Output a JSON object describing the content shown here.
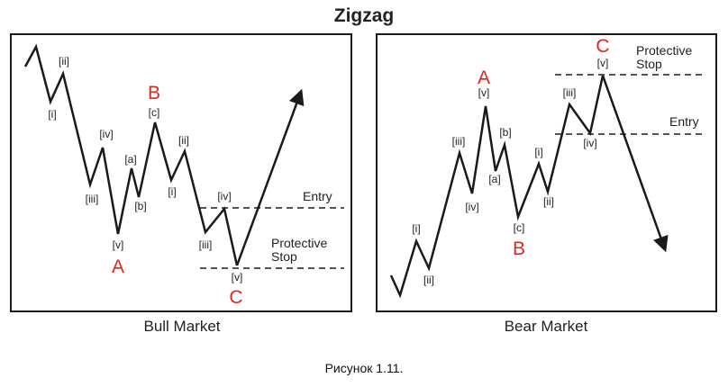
{
  "title": "Zigzag",
  "figure_caption": "Рисунок 1.11.",
  "colors": {
    "line": "#1a1a1a",
    "wave_letter": "#e0261f",
    "text": "#222222"
  },
  "panels": [
    {
      "caption": "Bull Market",
      "wave_labels": [
        "[ii]",
        "[i]",
        "[iv]",
        "[iii]",
        "[a]",
        "[b]",
        "[v]",
        "[c]",
        "[ii]",
        "[i]",
        "[iv]",
        "[iii]",
        "[v]"
      ],
      "letters": [
        "A",
        "B",
        "C"
      ],
      "levels": [
        {
          "text": "Entry"
        },
        {
          "text": "Protective\nStop"
        }
      ]
    },
    {
      "caption": "Bear Market",
      "wave_labels": [
        "[i]",
        "[ii]",
        "[iii]",
        "[iv]",
        "[v]",
        "[a]",
        "[b]",
        "[c]",
        "[i]",
        "[ii]",
        "[iii]",
        "[iv]",
        "[v]"
      ],
      "letters": [
        "A",
        "B",
        "C"
      ],
      "levels": [
        {
          "text": "Protective\nStop"
        },
        {
          "text": "Entry"
        }
      ]
    }
  ]
}
